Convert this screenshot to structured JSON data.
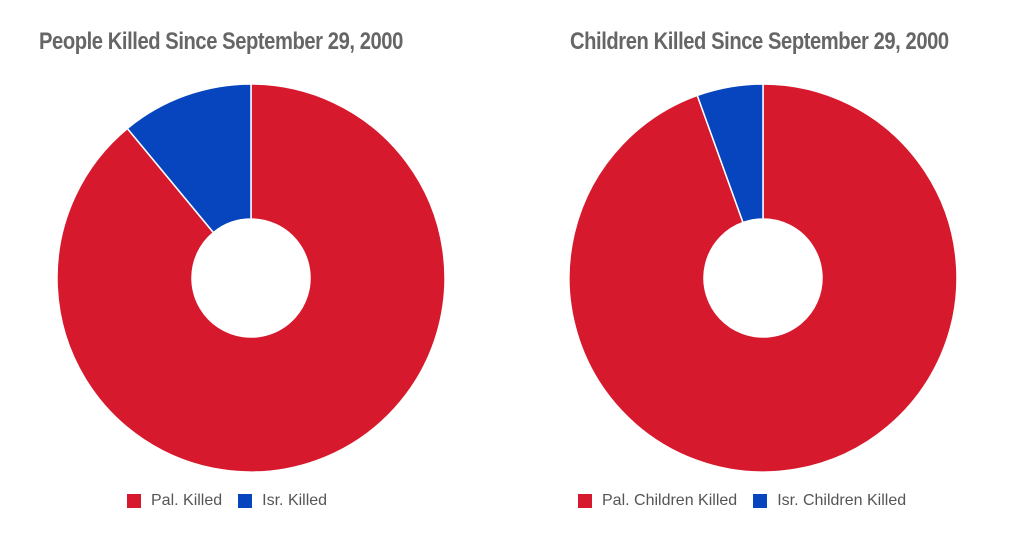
{
  "chart_data": [
    {
      "type": "pie",
      "title": "People Killed Since September 29, 2000",
      "categories": [
        "Pal. Killed",
        "Isr. Killed"
      ],
      "values": [
        89,
        11
      ],
      "colors": [
        "#d7192d",
        "#0645bd"
      ]
    },
    {
      "type": "pie",
      "title": "Children Killed Since September 29, 2000",
      "categories": [
        "Pal. Children Killed",
        "Isr. Children Killed"
      ],
      "values": [
        94.5,
        5.5
      ],
      "colors": [
        "#d7192d",
        "#0645bd"
      ]
    }
  ]
}
